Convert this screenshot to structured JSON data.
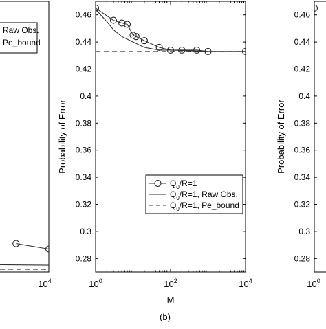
{
  "caption": "(b)",
  "chart_data": [
    {
      "type": "line",
      "panel": "left (partially visible)",
      "xscale": "log",
      "xlim": [
        1,
        10000
      ],
      "x_ticks": [
        {
          "base": "10",
          "exp": "4"
        }
      ],
      "legend": {
        "placement": "top-right",
        "entries": [
          {
            "style": "solid",
            "label": "Raw Obs."
          },
          {
            "style": "dashed",
            "label": "Pe_bound"
          }
        ]
      },
      "series": [
        {
          "style": "circles",
          "x": [
            1000,
            10000
          ],
          "y": [
            0.291,
            0.287
          ]
        },
        {
          "style": "solid",
          "x": [
            1,
            10000
          ],
          "y": [
            0.276,
            0.275
          ]
        },
        {
          "style": "dashed",
          "x": [
            1,
            10000
          ],
          "y": [
            0.272,
            0.272
          ]
        }
      ]
    },
    {
      "type": "line",
      "panel": "center",
      "xlabel": "M",
      "ylabel": "Probability of Error",
      "xscale": "log",
      "xlim": [
        1,
        10000
      ],
      "ylim": [
        0.27,
        0.47
      ],
      "grid": false,
      "x_ticks": [
        {
          "base": "10",
          "exp": "0",
          "value": 1
        },
        {
          "base": "10",
          "exp": "2",
          "value": 100
        },
        {
          "base": "10",
          "exp": "4",
          "value": 10000
        }
      ],
      "y_ticks": [
        {
          "value": 0.46,
          "label": "0.46"
        },
        {
          "value": 0.44,
          "label": "0.44"
        },
        {
          "value": 0.42,
          "label": "0.42"
        },
        {
          "value": 0.4,
          "label": "0.4"
        },
        {
          "value": 0.38,
          "label": "0.38"
        },
        {
          "value": 0.36,
          "label": "0.36"
        },
        {
          "value": 0.34,
          "label": "0.34"
        },
        {
          "value": 0.32,
          "label": "0.32"
        },
        {
          "value": 0.3,
          "label": "0.3"
        },
        {
          "value": 0.28,
          "label": "0.28"
        }
      ],
      "legend": {
        "placement": "lower-right",
        "entries": [
          {
            "style": "circles",
            "pre": "Q",
            "sub": "0",
            "post": "/R=1"
          },
          {
            "style": "solid",
            "pre": "Q",
            "sub": "0",
            "post": "/R=1, Raw Obs."
          },
          {
            "style": "dashed",
            "pre": "Q",
            "sub": "0",
            "post": "/R=1, Pe_bound"
          }
        ]
      },
      "series": [
        {
          "style": "circles",
          "x": [
            1,
            3,
            5,
            7,
            10,
            12,
            20,
            50,
            100,
            200,
            500,
            1000,
            10000
          ],
          "y": [
            0.465,
            0.456,
            0.454,
            0.453,
            0.445,
            0.444,
            0.441,
            0.436,
            0.434,
            0.434,
            0.434,
            0.433,
            0.433
          ]
        },
        {
          "style": "solid",
          "x": [
            1,
            2,
            3,
            5,
            10,
            20,
            50,
            100,
            1000,
            10000
          ],
          "y": [
            0.464,
            0.455,
            0.449,
            0.444,
            0.44,
            0.436,
            0.434,
            0.434,
            0.433,
            0.433
          ]
        },
        {
          "style": "dashed",
          "x": [
            1,
            10000
          ],
          "y": [
            0.433,
            0.433
          ]
        }
      ]
    },
    {
      "type": "line",
      "panel": "right (partially visible)",
      "ylabel": "Probability of Error",
      "xscale": "log",
      "x_ticks": [
        {
          "base": "10",
          "exp": "0"
        }
      ],
      "y_ticks": [
        {
          "value": 0.46,
          "label": "0.46"
        },
        {
          "value": 0.44,
          "label": "0.44"
        },
        {
          "value": 0.42,
          "label": "0.42"
        },
        {
          "value": 0.4,
          "label": "0.4"
        },
        {
          "value": 0.38,
          "label": "0.38"
        },
        {
          "value": 0.36,
          "label": "0.36"
        },
        {
          "value": 0.34,
          "label": "0.34"
        },
        {
          "value": 0.32,
          "label": "0.32"
        },
        {
          "value": 0.3,
          "label": "0.3"
        },
        {
          "value": 0.28,
          "label": "0.28"
        }
      ],
      "series": [
        {
          "style": "circles",
          "x": [
            1
          ],
          "y": [
            0.465
          ]
        }
      ]
    }
  ]
}
